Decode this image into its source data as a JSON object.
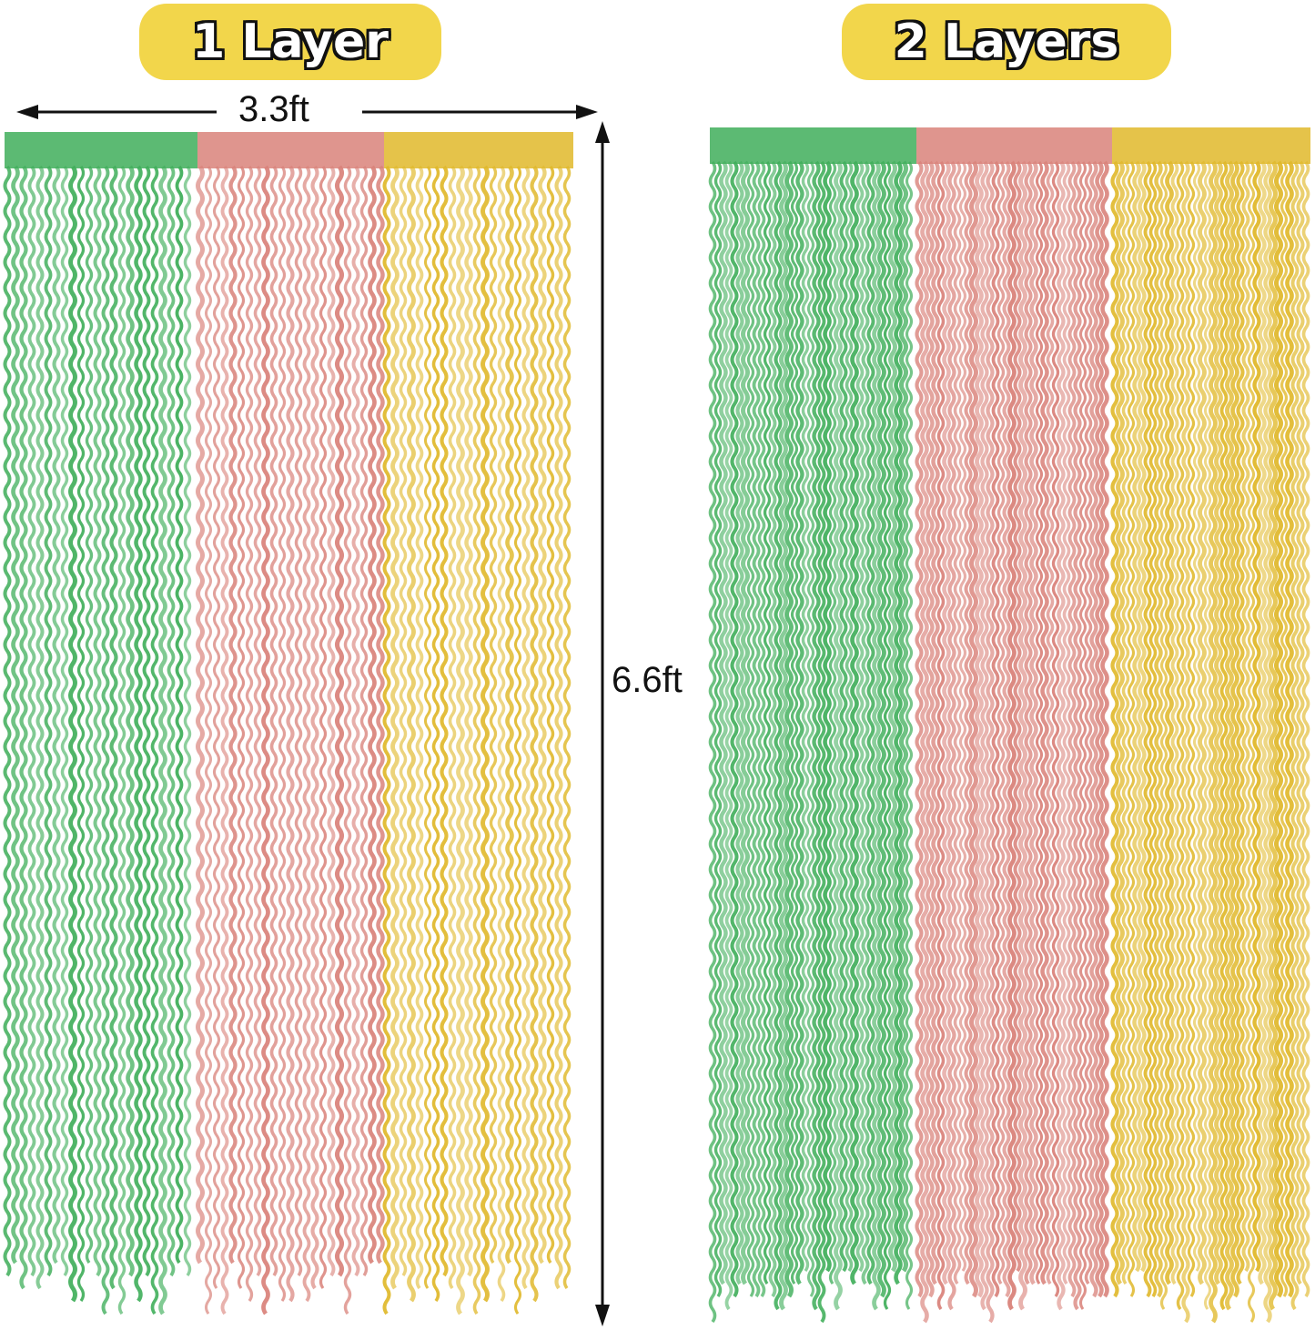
{
  "labels": {
    "one_layer": "1 Layer",
    "two_layers": "2 Layers"
  },
  "dimensions": {
    "width": "3.3ft",
    "height": "6.6ft"
  },
  "colors": {
    "badge": "#f2d64b",
    "green": "#3fae5a",
    "pink": "#d9827a",
    "gold": "#e0b82a"
  }
}
